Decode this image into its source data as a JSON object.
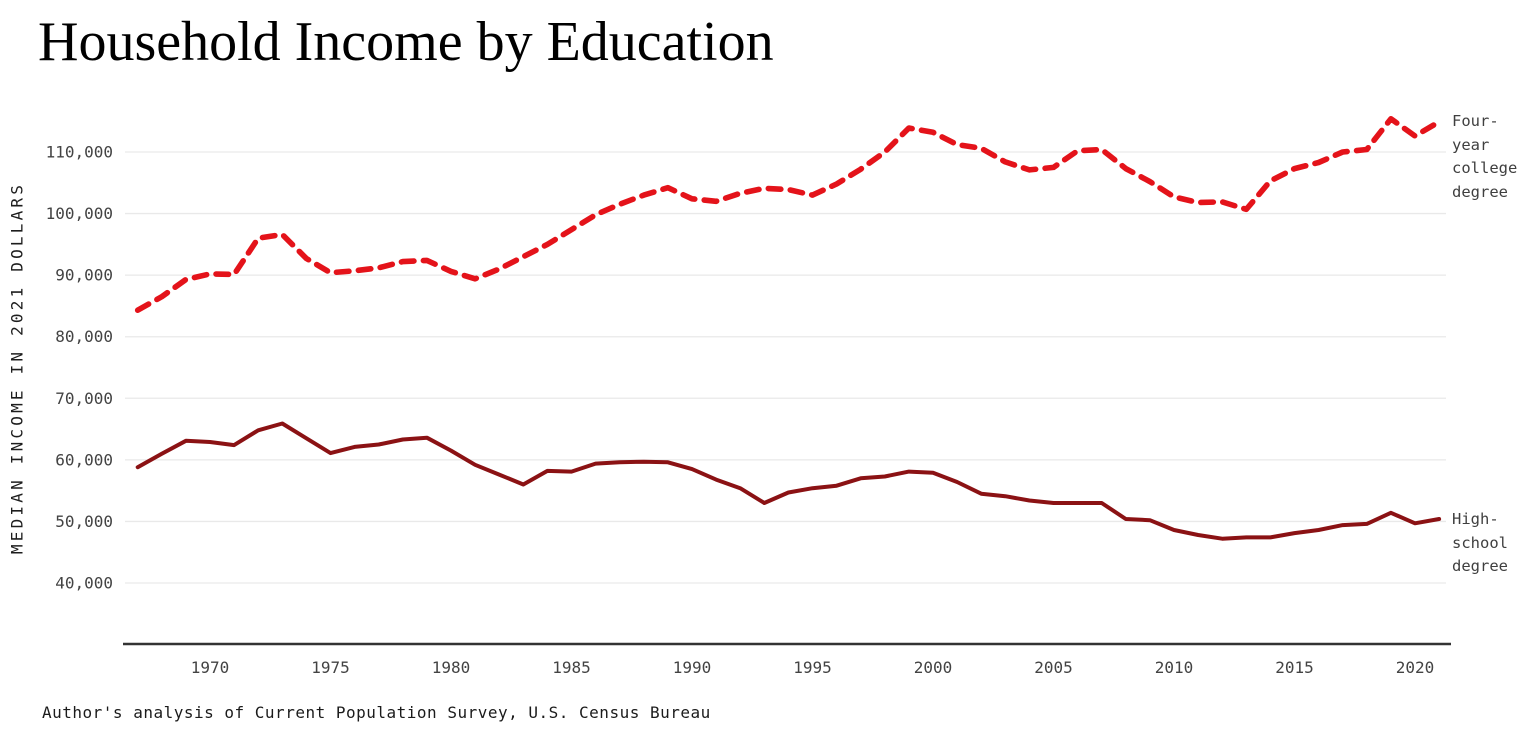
{
  "header": {
    "title": "Household Income by Education"
  },
  "y_axis": {
    "title": "MEDIAN INCOME IN 2021 DOLLARS",
    "tick_labels": [
      "40,000",
      "50,000",
      "60,000",
      "70,000",
      "80,000",
      "90,000",
      "100,000",
      "110,000"
    ]
  },
  "x_axis": {
    "tick_labels": [
      "1970",
      "1975",
      "1980",
      "1985",
      "1990",
      "1995",
      "2000",
      "2005",
      "2010",
      "2015",
      "2020"
    ]
  },
  "annotations": {
    "college": "Four-\nyear\ncollege\ndegree",
    "highschool": "High-\nschool\ndegree"
  },
  "footer": {
    "source": "Author's analysis of Current Population Survey, U.S. Census Bureau"
  },
  "colors": {
    "college_line": "#e4131a",
    "highschool_line": "#8b1214",
    "gridline": "#e9e9e9",
    "axis_line": "#333333",
    "tick_text": "#434343",
    "annotation_text": "#3f3f3f"
  },
  "chart_data": {
    "type": "line",
    "title": "Household Income by Education",
    "xlabel": "",
    "ylabel": "MEDIAN INCOME IN 2021 DOLLARS",
    "grid": "horizontal",
    "legend_position": "right-edge-annotations",
    "x_range": [
      1967,
      2021
    ],
    "ylim": [
      30000,
      117500
    ],
    "yticks": [
      40000,
      50000,
      60000,
      70000,
      80000,
      90000,
      100000,
      110000
    ],
    "xticks": [
      1970,
      1975,
      1980,
      1985,
      1990,
      1995,
      2000,
      2005,
      2010,
      2015,
      2020
    ],
    "x": [
      1967,
      1968,
      1969,
      1970,
      1971,
      1972,
      1973,
      1974,
      1975,
      1976,
      1977,
      1978,
      1979,
      1980,
      1981,
      1982,
      1983,
      1984,
      1985,
      1986,
      1987,
      1988,
      1989,
      1990,
      1991,
      1992,
      1993,
      1994,
      1995,
      1996,
      1997,
      1998,
      1999,
      2000,
      2001,
      2002,
      2003,
      2004,
      2005,
      2006,
      2007,
      2008,
      2009,
      2010,
      2011,
      2012,
      2013,
      2014,
      2015,
      2016,
      2017,
      2018,
      2019,
      2020,
      2021
    ],
    "series": [
      {
        "name": "Four-year college degree",
        "style": "dashed",
        "color": "#e4131a",
        "values": [
          84300,
          86500,
          89300,
          90200,
          90100,
          96000,
          96600,
          92700,
          90400,
          90700,
          91200,
          92200,
          92400,
          90600,
          89400,
          91000,
          93000,
          95000,
          97400,
          99800,
          101500,
          103000,
          104200,
          102400,
          102000,
          103300,
          104100,
          103900,
          103000,
          104800,
          107200,
          110000,
          113900,
          113200,
          111200,
          110600,
          108400,
          107100,
          107500,
          110200,
          110400,
          107300,
          105200,
          102700,
          101800,
          101900,
          100700,
          105300,
          107300,
          108300,
          110000,
          110400,
          115400,
          112600,
          114900
        ]
      },
      {
        "name": "High-school degree",
        "style": "solid",
        "color": "#8b1214",
        "values": [
          58800,
          61000,
          63100,
          62900,
          62400,
          64800,
          65900,
          63500,
          61100,
          62100,
          62500,
          63300,
          63600,
          61500,
          59200,
          57600,
          56000,
          58200,
          58100,
          59400,
          59600,
          59700,
          59600,
          58500,
          56800,
          55400,
          53000,
          54700,
          55400,
          55800,
          57000,
          57300,
          58100,
          57900,
          56400,
          54500,
          54100,
          53400,
          53000,
          53000,
          53000,
          50400,
          50200,
          48600,
          47800,
          47200,
          47400,
          47400,
          48100,
          48600,
          49400,
          49600,
          51400,
          49700,
          50400
        ]
      }
    ]
  }
}
